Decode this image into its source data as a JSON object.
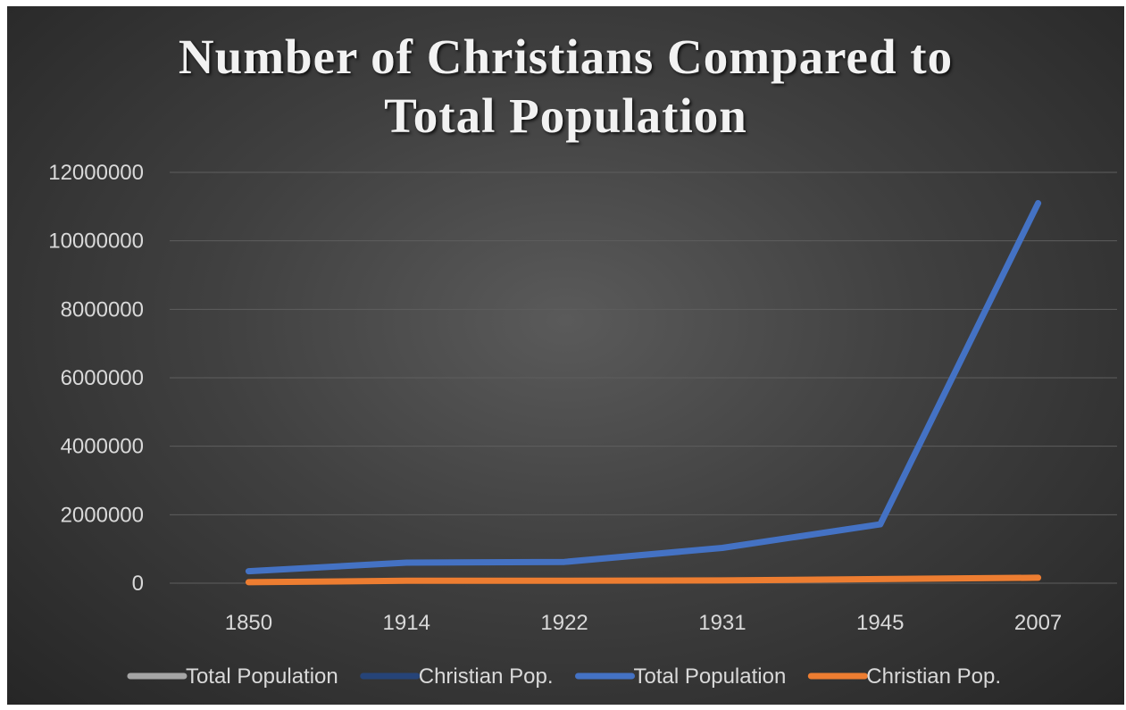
{
  "chart_data": {
    "type": "line",
    "title": "Number of Christians Compared to Total Population",
    "title_lines": [
      "Number of Christians Compared to",
      "Total Population"
    ],
    "categories": [
      "1850",
      "1914",
      "1922",
      "1931",
      "1945",
      "2007"
    ],
    "ylim": [
      0,
      12000000
    ],
    "y_ticks": [
      "0",
      "2000000",
      "4000000",
      "6000000",
      "8000000",
      "10000000",
      "12000000"
    ],
    "grid": true,
    "legend_position": "bottom",
    "series": [
      {
        "name": "Total Population",
        "color": "#a5a5a5",
        "values": null
      },
      {
        "name": "Christian Pop.",
        "color": "#264478",
        "values": null
      },
      {
        "name": "Total Population",
        "color": "#4472c4",
        "values": [
          350000,
          600000,
          620000,
          1030000,
          1720000,
          11100000
        ]
      },
      {
        "name": "Christian Pop.",
        "color": "#ed7d31",
        "values": [
          30000,
          70000,
          70000,
          80000,
          120000,
          160000
        ]
      }
    ]
  }
}
